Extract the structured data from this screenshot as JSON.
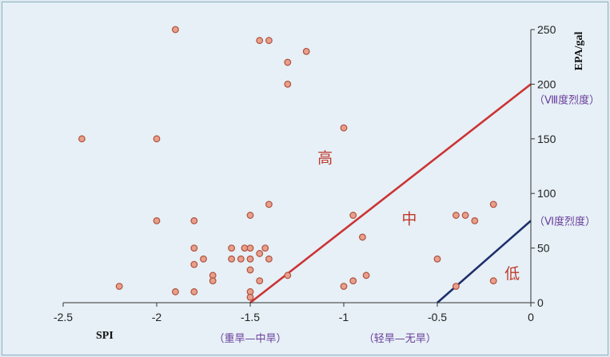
{
  "chart_data": {
    "type": "scatter",
    "xlabel": "SPI",
    "ylabel": "EPA/gal",
    "xlim": [
      -2.5,
      0
    ],
    "ylim": [
      0,
      250
    ],
    "x_ticks": [
      -2.5,
      -2,
      -1.5,
      -1,
      -0.5,
      0
    ],
    "y_ticks": [
      0,
      50,
      100,
      150,
      200,
      250
    ],
    "x_tick_labels": [
      "-2.5",
      "-2",
      "-1.5",
      "-1",
      "-0.5",
      "0"
    ],
    "y_tick_labels": [
      "0",
      "50",
      "100",
      "150",
      "200",
      "250"
    ],
    "grid": false,
    "marker_color": "#e8a08c",
    "marker_edge": "#b0503c",
    "points": [
      {
        "x": -2.4,
        "y": 150
      },
      {
        "x": -2.2,
        "y": 15
      },
      {
        "x": -2.0,
        "y": 150
      },
      {
        "x": -2.0,
        "y": 75
      },
      {
        "x": -1.9,
        "y": 250
      },
      {
        "x": -1.9,
        "y": 10
      },
      {
        "x": -1.8,
        "y": 75
      },
      {
        "x": -1.8,
        "y": 50
      },
      {
        "x": -1.8,
        "y": 35
      },
      {
        "x": -1.8,
        "y": 10
      },
      {
        "x": -1.75,
        "y": 40
      },
      {
        "x": -1.7,
        "y": 25
      },
      {
        "x": -1.7,
        "y": 20
      },
      {
        "x": -1.6,
        "y": 50
      },
      {
        "x": -1.6,
        "y": 40
      },
      {
        "x": -1.55,
        "y": 40
      },
      {
        "x": -1.53,
        "y": 50
      },
      {
        "x": -1.5,
        "y": 80
      },
      {
        "x": -1.5,
        "y": 50
      },
      {
        "x": -1.5,
        "y": 40
      },
      {
        "x": -1.5,
        "y": 30
      },
      {
        "x": -1.5,
        "y": 10
      },
      {
        "x": -1.5,
        "y": 5
      },
      {
        "x": -1.45,
        "y": 240
      },
      {
        "x": -1.45,
        "y": 45
      },
      {
        "x": -1.45,
        "y": 20
      },
      {
        "x": -1.42,
        "y": 50
      },
      {
        "x": -1.4,
        "y": 240
      },
      {
        "x": -1.4,
        "y": 90
      },
      {
        "x": -1.4,
        "y": 40
      },
      {
        "x": -1.3,
        "y": 220
      },
      {
        "x": -1.3,
        "y": 200
      },
      {
        "x": -1.3,
        "y": 25
      },
      {
        "x": -1.2,
        "y": 230
      },
      {
        "x": -1.0,
        "y": 160
      },
      {
        "x": -1.0,
        "y": 15
      },
      {
        "x": -0.95,
        "y": 80
      },
      {
        "x": -0.95,
        "y": 20
      },
      {
        "x": -0.9,
        "y": 60
      },
      {
        "x": -0.88,
        "y": 25
      },
      {
        "x": -0.5,
        "y": 40
      },
      {
        "x": -0.4,
        "y": 80
      },
      {
        "x": -0.4,
        "y": 15
      },
      {
        "x": -0.35,
        "y": 80
      },
      {
        "x": -0.3,
        "y": 75
      },
      {
        "x": -0.2,
        "y": 90
      },
      {
        "x": -0.2,
        "y": 20
      }
    ],
    "lines": [
      {
        "color": "#cc3333",
        "x1": -1.5,
        "y1": 0,
        "x2": 0,
        "y2": 200
      },
      {
        "color": "#1f2f6b",
        "x1": -0.5,
        "y1": 0,
        "x2": 0,
        "y2": 75
      }
    ],
    "region_labels": [
      {
        "text": "高",
        "x": -1.1,
        "y": 128
      },
      {
        "text": "中",
        "x": -0.65,
        "y": 72
      },
      {
        "text": "低",
        "x": -0.1,
        "y": 22
      }
    ],
    "y_annotations": [
      {
        "text": "（Ⅷ度烈度）",
        "y": 186
      },
      {
        "text": "（Ⅵ度烈度）",
        "y": 75
      }
    ],
    "x_annotations": [
      {
        "text": "（重旱—中旱）",
        "x": -1.5
      },
      {
        "text": "（轻旱—无旱）",
        "x": -0.7
      }
    ]
  }
}
